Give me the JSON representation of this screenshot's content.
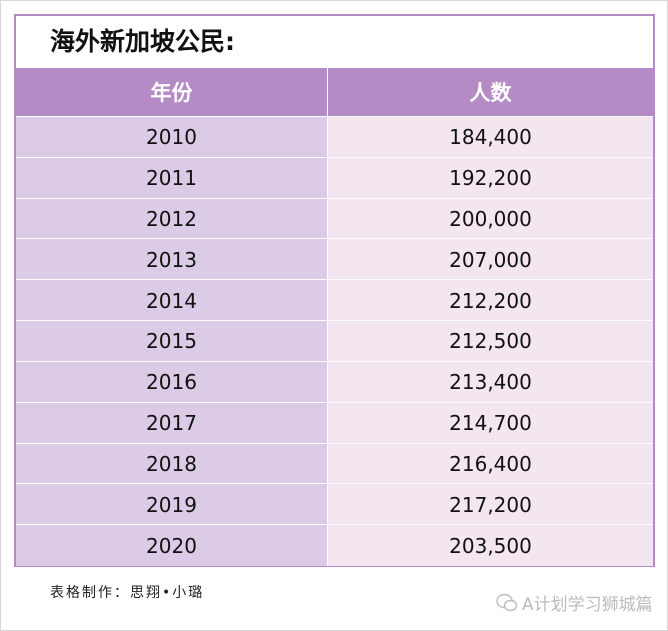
{
  "title": "海外新加坡公民:",
  "table": {
    "header": [
      "年份",
      "人数"
    ],
    "rows": [
      [
        "2010",
        "184,400"
      ],
      [
        "2011",
        "192,200"
      ],
      [
        "2012",
        "200,000"
      ],
      [
        "2013",
        "207,000"
      ],
      [
        "2014",
        "212,200"
      ],
      [
        "2015",
        "212,500"
      ],
      [
        "2016",
        "213,400"
      ],
      [
        "2017",
        "214,700"
      ],
      [
        "2018",
        "216,400"
      ],
      [
        "2019",
        "217,200"
      ],
      [
        "2020",
        "203,500"
      ]
    ]
  },
  "footer": "表格制作：思翔•小璐",
  "watermark": "A计划学习狮城篇"
}
